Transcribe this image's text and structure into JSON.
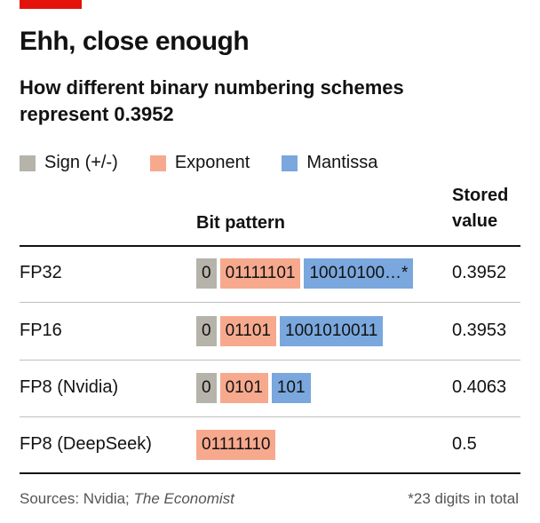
{
  "title": "Ehh, close enough",
  "subtitle": "How different binary numbering schemes represent 0.3952",
  "legend": [
    {
      "label": "Sign (+/-)",
      "color": "#b5b3aa"
    },
    {
      "label": "Exponent",
      "color": "#f7a98e"
    },
    {
      "label": "Mantissa",
      "color": "#7aa7dd"
    }
  ],
  "columns": {
    "bit_pattern": "Bit pattern",
    "stored_line1": "Stored",
    "stored_line2": "value"
  },
  "chart_data": {
    "type": "table",
    "title": "Ehh, close enough",
    "subtitle": "How different binary numbering schemes represent 0.3952",
    "rows": [
      {
        "format": "FP32",
        "sign": "0",
        "exponent": "01111101",
        "mantissa": "10010100…*",
        "stored_value": "0.3952"
      },
      {
        "format": "FP16",
        "sign": "0",
        "exponent": "01101",
        "mantissa": "1001010011",
        "stored_value": "0.3953"
      },
      {
        "format": "FP8 (Nvidia)",
        "sign": "0",
        "exponent": "0101",
        "mantissa": "101",
        "stored_value": "0.4063"
      },
      {
        "format": "FP8 (DeepSeek)",
        "sign": null,
        "exponent": "01111110",
        "mantissa": null,
        "stored_value": "0.5"
      }
    ]
  },
  "footer": {
    "sources_prefix": "Sources: Nvidia; ",
    "sources_italic": "The Economist",
    "note": "*23 digits in total"
  }
}
